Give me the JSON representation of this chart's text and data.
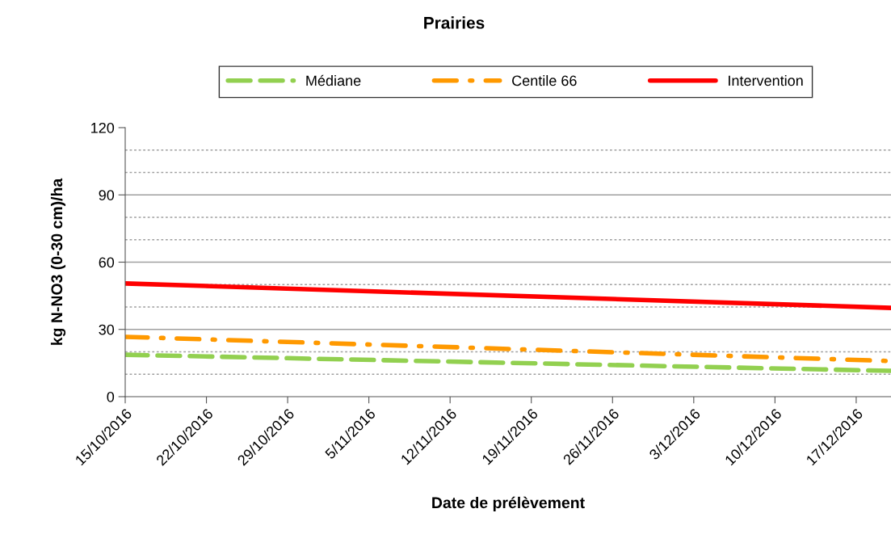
{
  "chart_data": {
    "type": "line",
    "title": "Prairies",
    "xlabel": "Date de prélèvement",
    "ylabel": "kg N-NO3 (0-30 cm)/ha",
    "series": [
      {
        "name": "Médiane",
        "color": "#92d050",
        "line_style": "dashed",
        "x": [
          "2016-10-15",
          "2016-12-20"
        ],
        "values": [
          18.7,
          11.5
        ]
      },
      {
        "name": "Centile 66",
        "color": "#ff9900",
        "line_style": "dashdot",
        "x": [
          "2016-10-15",
          "2016-12-20"
        ],
        "values": [
          26.7,
          15.9
        ]
      },
      {
        "name": "Intervention",
        "color": "#ff0000",
        "line_style": "solid",
        "x": [
          "2016-10-15",
          "2016-12-20"
        ],
        "values": [
          50.5,
          39.6
        ]
      }
    ],
    "xlim": [
      "2016-10-15",
      "2016-12-20"
    ],
    "xticks": [
      {
        "value": "2016-10-15",
        "label": "15/10/2016"
      },
      {
        "value": "2016-10-22",
        "label": "22/10/2016"
      },
      {
        "value": "2016-10-29",
        "label": "29/10/2016"
      },
      {
        "value": "2016-11-05",
        "label": "5/11/2016"
      },
      {
        "value": "2016-11-12",
        "label": "12/11/2016"
      },
      {
        "value": "2016-11-19",
        "label": "19/11/2016"
      },
      {
        "value": "2016-11-26",
        "label": "26/11/2016"
      },
      {
        "value": "2016-12-03",
        "label": "3/12/2016"
      },
      {
        "value": "2016-12-10",
        "label": "10/12/2016"
      },
      {
        "value": "2016-12-17",
        "label": "17/12/2016"
      }
    ],
    "ylim": [
      0,
      120
    ],
    "yticks": [
      0,
      {
        "value": 10,
        "label": null
      },
      {
        "value": 20,
        "label": null
      },
      30,
      {
        "value": 40,
        "label": null
      },
      {
        "value": 50,
        "label": null
      },
      60,
      {
        "value": 70,
        "label": null
      },
      {
        "value": 80,
        "label": null
      },
      90,
      {
        "value": 100,
        "label": null
      },
      {
        "value": 110,
        "label": null
      },
      120
    ],
    "grid": "y",
    "legend": "top",
    "marker": "none"
  }
}
